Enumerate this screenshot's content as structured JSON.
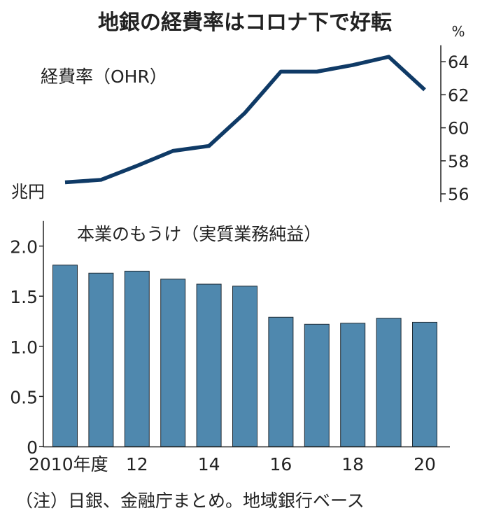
{
  "title": "地銀の経費率はコロナ下で好転",
  "note": "（注）日銀、金融庁まとめ。地域銀行ベース",
  "chart_data": [
    {
      "type": "line",
      "label": "経費率（OHR）",
      "unit": "%",
      "x": [
        2010,
        2011,
        2012,
        2013,
        2014,
        2015,
        2016,
        2017,
        2018,
        2019,
        2020
      ],
      "values": [
        56.7,
        56.85,
        57.7,
        58.6,
        58.9,
        60.9,
        63.4,
        63.4,
        63.8,
        64.3,
        62.3
      ],
      "ylim": [
        55.5,
        65
      ],
      "yticks": [
        "56",
        "58",
        "60",
        "62",
        "64"
      ],
      "ytick_values": [
        56,
        58,
        60,
        62,
        64
      ],
      "axis_side": "right",
      "color": "#0f3a66"
    },
    {
      "type": "bar",
      "label": "本業のもうけ（実質業務純益）",
      "unit": "兆円",
      "x": [
        2010,
        2011,
        2012,
        2013,
        2014,
        2015,
        2016,
        2017,
        2018,
        2019,
        2020
      ],
      "values": [
        1.81,
        1.73,
        1.75,
        1.67,
        1.62,
        1.6,
        1.29,
        1.22,
        1.23,
        1.28,
        1.24
      ],
      "ylim": [
        0,
        2.25
      ],
      "yticks": [
        "0",
        "0.5",
        "1.0",
        "1.5",
        "2.0"
      ],
      "ytick_values": [
        0,
        0.5,
        1.0,
        1.5,
        2.0
      ],
      "xtick_labels": [
        "2010年度",
        "12",
        "14",
        "16",
        "18",
        "20"
      ],
      "xtick_years": [
        2010,
        2012,
        2014,
        2016,
        2018,
        2020
      ],
      "axis_side": "left",
      "color": "#4f88ae"
    }
  ]
}
